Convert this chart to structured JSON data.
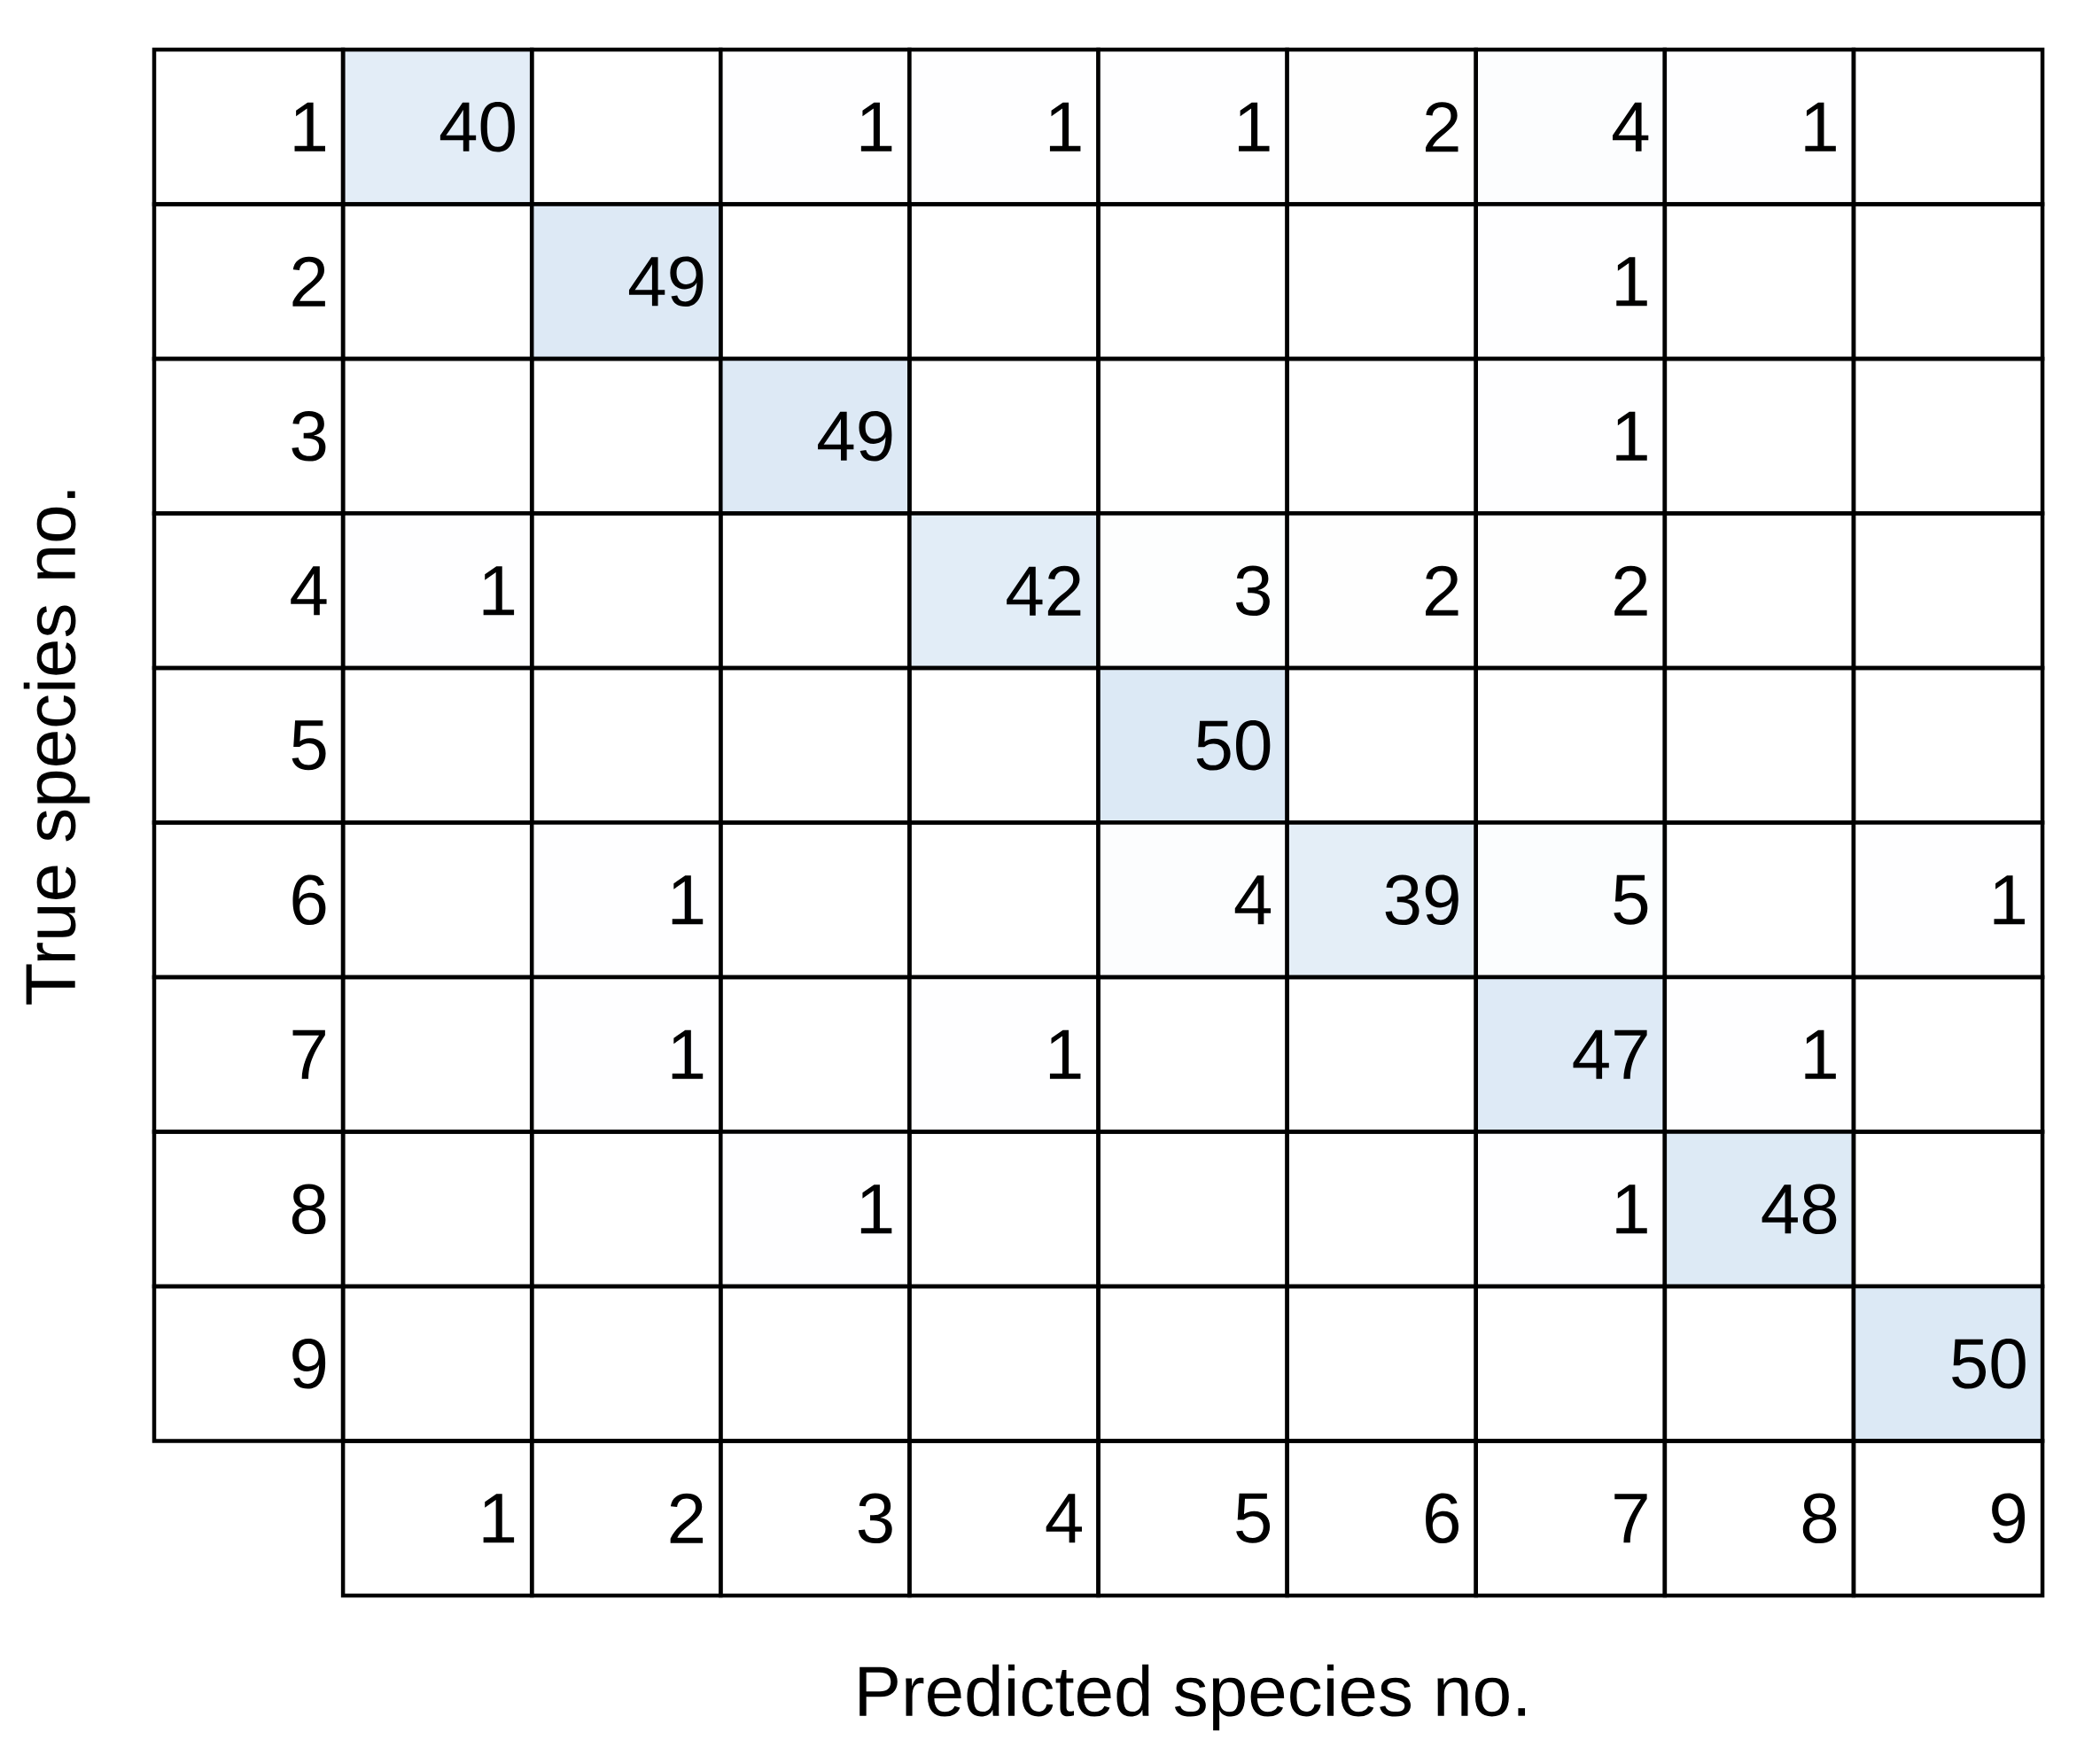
{
  "chart_data": {
    "type": "heatmap",
    "xlabel": "Predicted species no.",
    "ylabel": "True species no.",
    "color": "#dce9f5",
    "data_labels": true,
    "categories": [
      "1",
      "2",
      "3",
      "4",
      "5",
      "6",
      "7",
      "8",
      "9"
    ],
    "y_categories": [
      "1",
      "2",
      "3",
      "4",
      "5",
      "6",
      "7",
      "8",
      "9"
    ],
    "cells": [
      [
        40,
        null,
        1,
        1,
        1,
        2,
        4,
        1,
        null
      ],
      [
        null,
        49,
        null,
        null,
        null,
        null,
        1,
        null,
        null
      ],
      [
        null,
        null,
        49,
        null,
        null,
        null,
        1,
        null,
        null
      ],
      [
        1,
        null,
        null,
        42,
        3,
        2,
        2,
        null,
        null
      ],
      [
        null,
        null,
        null,
        null,
        50,
        null,
        null,
        null,
        null
      ],
      [
        null,
        1,
        null,
        null,
        4,
        39,
        5,
        null,
        1
      ],
      [
        null,
        1,
        null,
        1,
        null,
        null,
        47,
        1,
        null
      ],
      [
        null,
        null,
        1,
        null,
        null,
        null,
        1,
        48,
        null
      ],
      [
        null,
        null,
        null,
        null,
        null,
        null,
        null,
        null,
        50
      ]
    ]
  }
}
